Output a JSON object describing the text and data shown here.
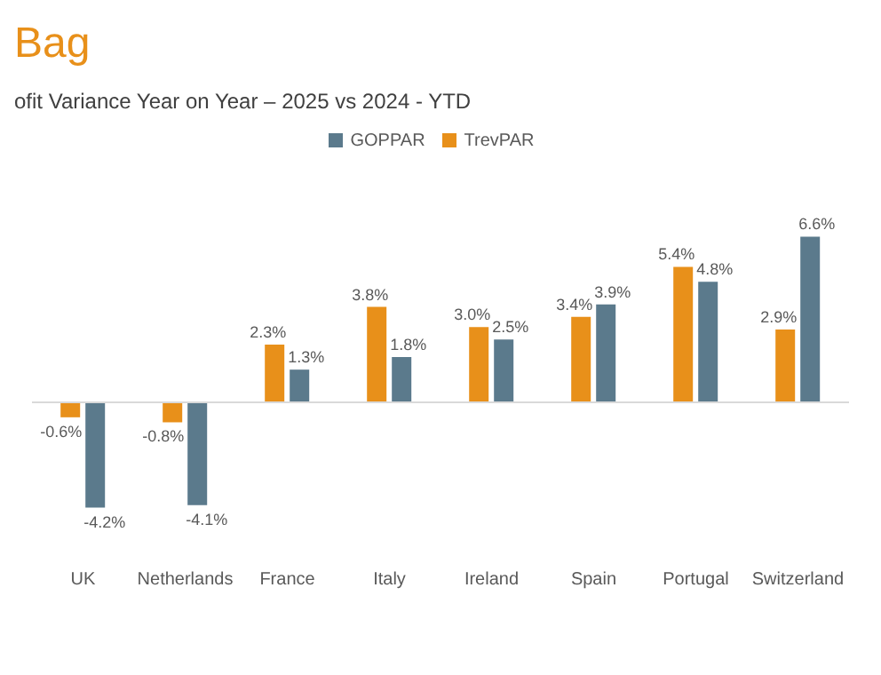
{
  "chart_data": {
    "type": "bar",
    "title": "Bag",
    "subtitle": "ofit Variance Year on Year – 2025 vs 2024 - YTD",
    "categories": [
      "UK",
      "Netherlands",
      "France",
      "Italy",
      "Ireland",
      "Spain",
      "Portugal",
      "Switzerland"
    ],
    "series": [
      {
        "name": "TrevPAR",
        "color": "#e8901a",
        "values": [
          -0.6,
          -0.8,
          2.3,
          3.8,
          3.0,
          3.4,
          5.4,
          2.9
        ],
        "value_labels": [
          "-0.6%",
          "-0.8%",
          "2.3%",
          "3.8%",
          "3.0%",
          "3.4%",
          "5.4%",
          "2.9%"
        ]
      },
      {
        "name": "GOPPAR",
        "color": "#5b7a8c",
        "values": [
          -4.2,
          -4.1,
          1.3,
          1.8,
          2.5,
          3.9,
          4.8,
          6.6
        ],
        "value_labels": [
          "-4.2%",
          "-4.1%",
          "1.3%",
          "1.8%",
          "2.5%",
          "3.9%",
          "4.8%",
          "6.6%"
        ]
      }
    ],
    "ref_lines": [
      {
        "axis": "y",
        "value": 0,
        "color": "#d9d9d9"
      }
    ],
    "legend": "top",
    "tick_labels": "x",
    "grid": false
  }
}
